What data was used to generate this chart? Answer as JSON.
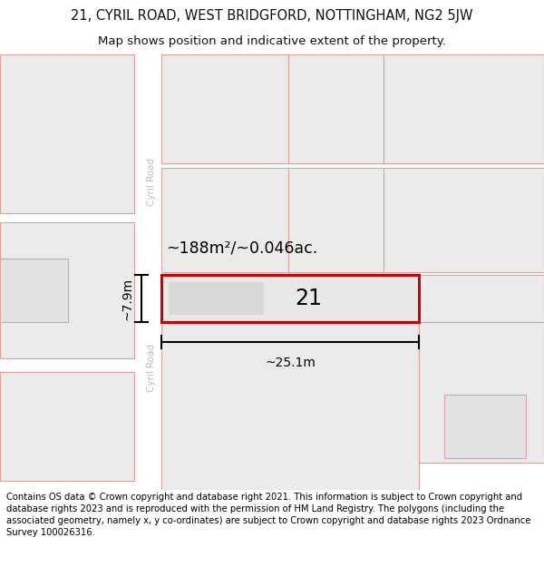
{
  "title_line1": "21, CYRIL ROAD, WEST BRIDGFORD, NOTTINGHAM, NG2 5JW",
  "title_line2": "Map shows position and indicative extent of the property.",
  "footer_text": "Contains OS data © Crown copyright and database right 2021. This information is subject to Crown copyright and database rights 2023 and is reproduced with the permission of HM Land Registry. The polygons (including the associated geometry, namely x, y co-ordinates) are subject to Crown copyright and database rights 2023 Ordnance Survey 100026316.",
  "map_bg": "#f2f2f2",
  "road_color": "#ffffff",
  "highlight_fill": "#e8e8e8",
  "highlight_border": "#cc0000",
  "neighbor_fill": "#ebebeb",
  "neighbor_border_light": "#e0a0a0",
  "road_label_color": "#bbbbbb",
  "road_label": "Cyril Road",
  "property_label": "21",
  "area_label": "~188m²/~0.046ac.",
  "width_label": "~25.1m",
  "height_label": "~7.9m",
  "title_fontsize": 10.5,
  "subtitle_fontsize": 9.5,
  "footer_fontsize": 7.2,
  "title_color": "#111111",
  "subtitle_color": "#111111"
}
